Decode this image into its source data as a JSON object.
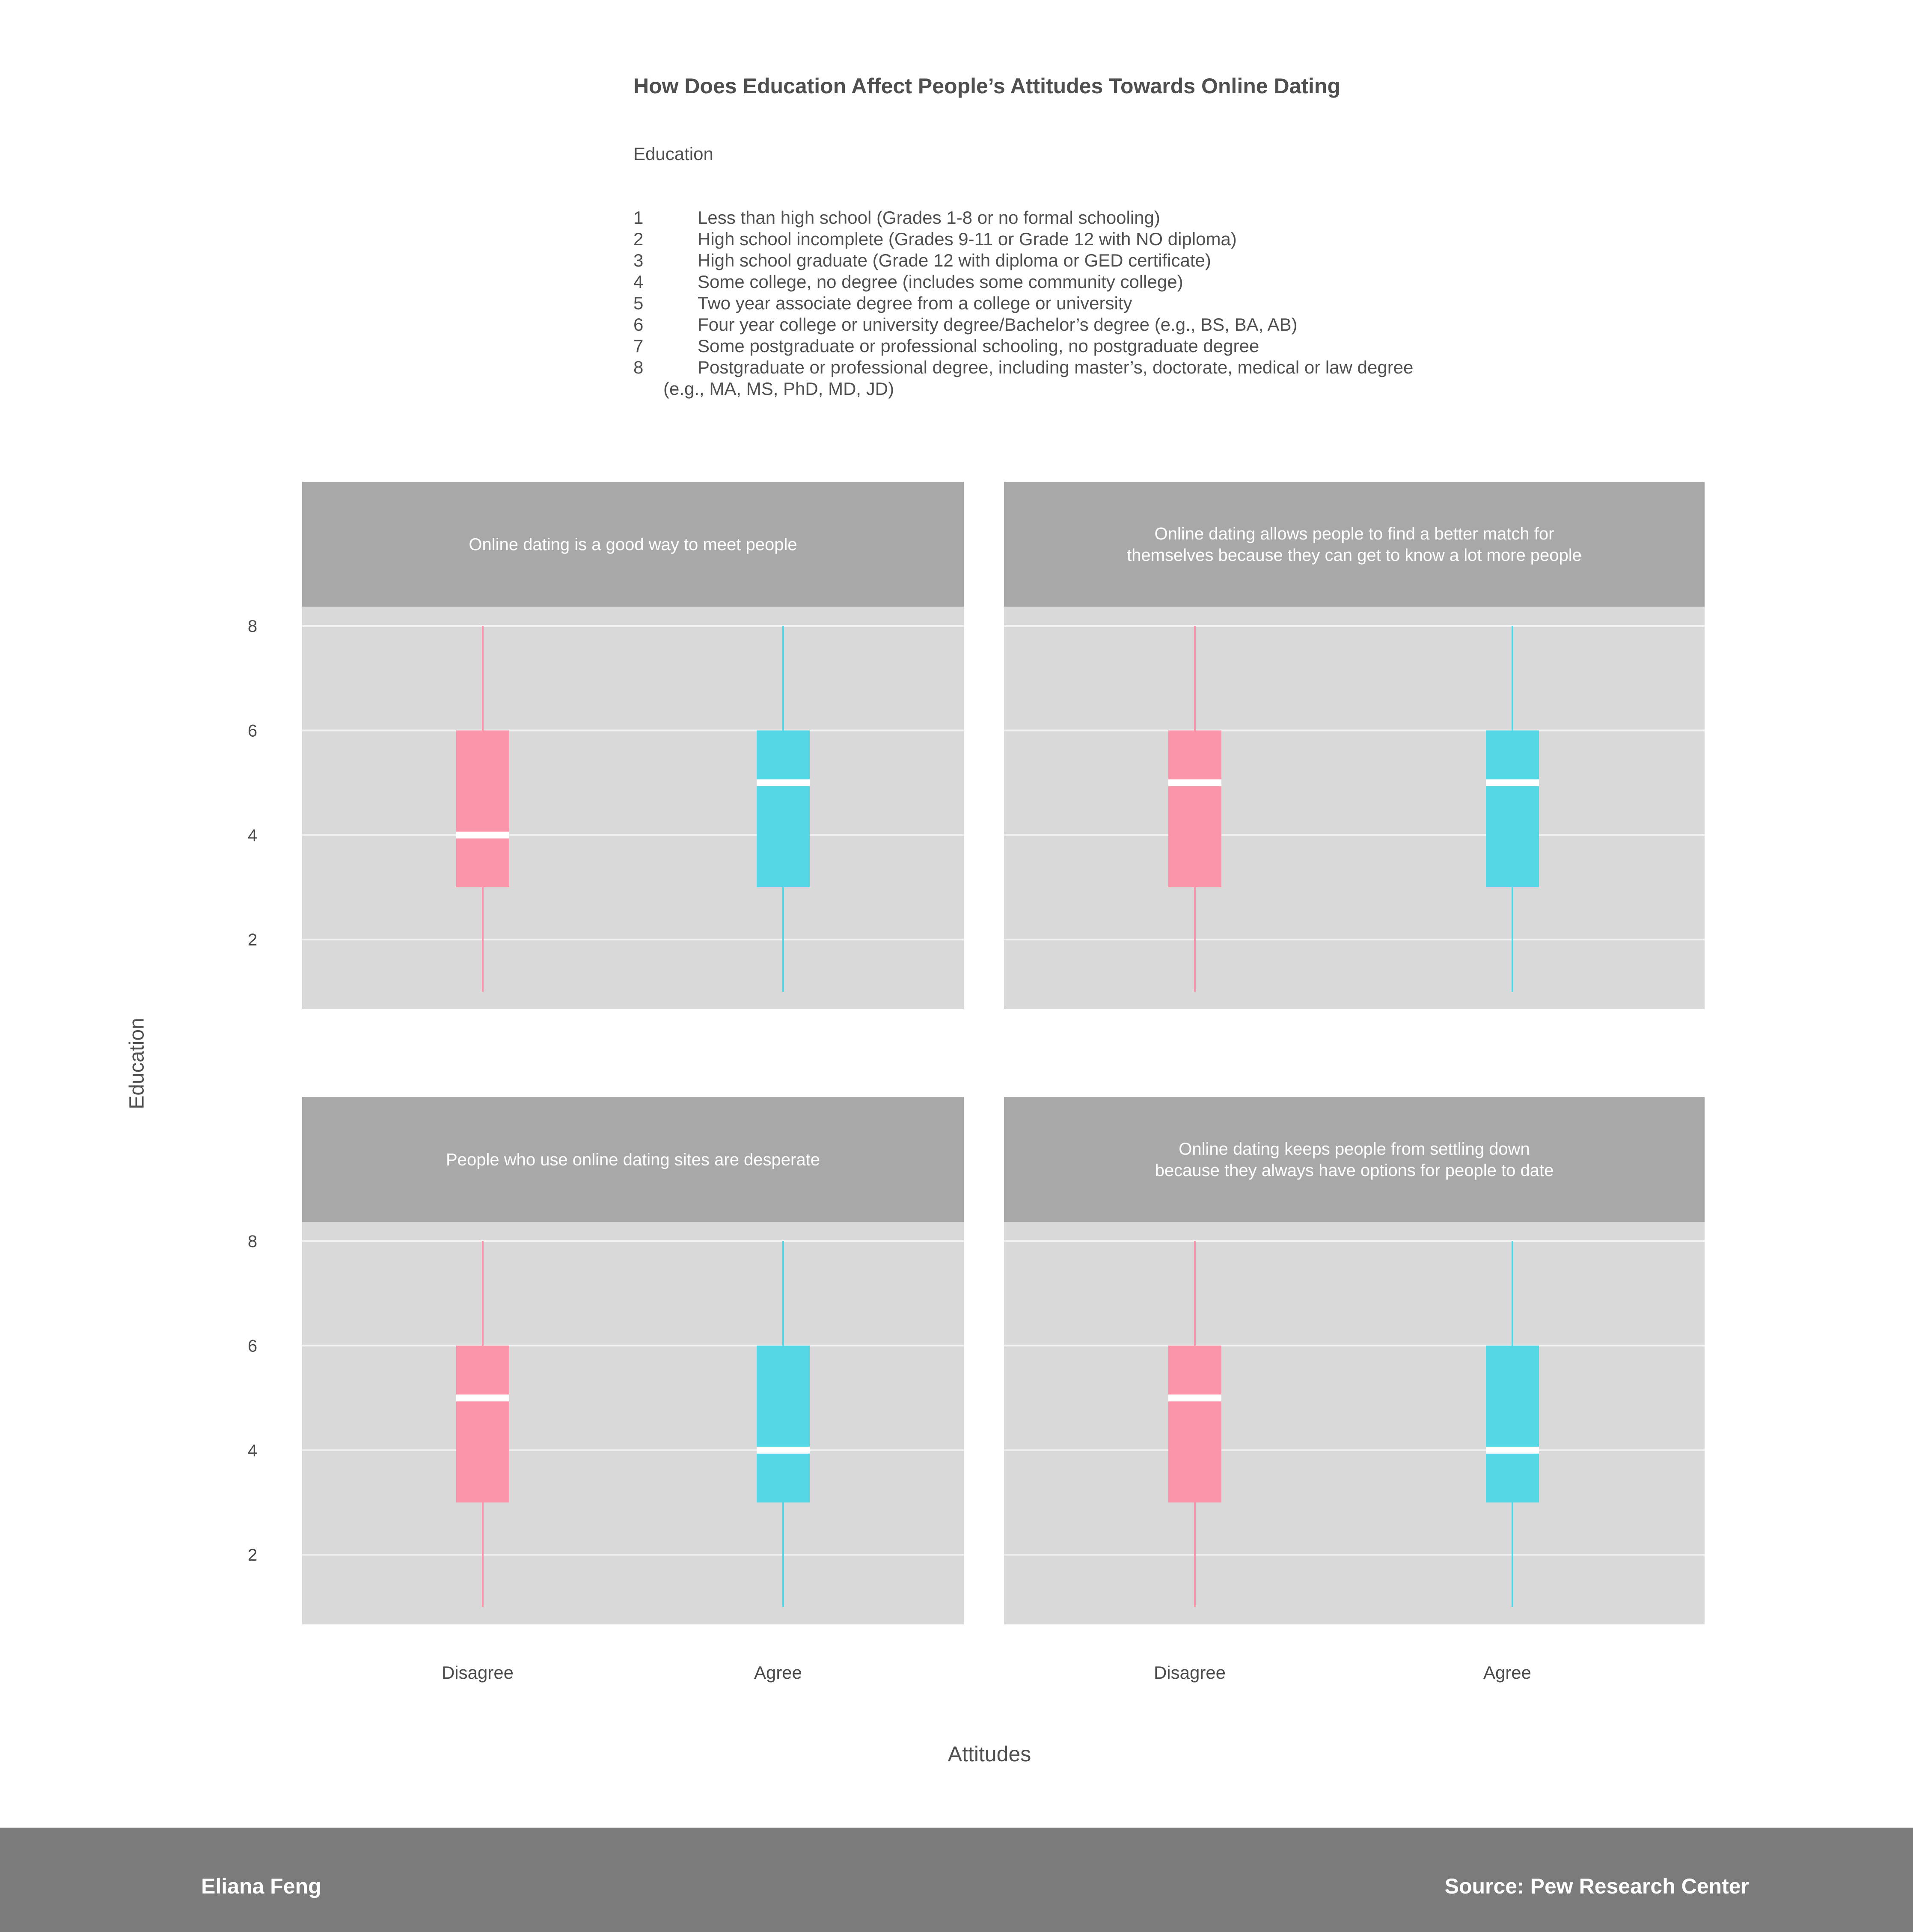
{
  "title": "How Does Education Affect People’s Attitudes Towards Online Dating",
  "legend": {
    "heading": "Education",
    "items": [
      {
        "code": "1",
        "label": "Less than high school (Grades 1-8 or no formal schooling)"
      },
      {
        "code": "2",
        "label": "High school incomplete (Grades 9-11 or Grade 12 with NO diploma)"
      },
      {
        "code": "3",
        "label": "High school graduate (Grade 12 with diploma or GED certificate)"
      },
      {
        "code": "4",
        "label": "Some college, no degree (includes some community college)"
      },
      {
        "code": "5",
        "label": "Two year associate degree from a college or university"
      },
      {
        "code": "6",
        "label": "Four year college or university degree/Bachelor’s degree (e.g., BS, BA, AB)"
      },
      {
        "code": "7",
        "label": "Some postgraduate or professional schooling, no postgraduate degree"
      },
      {
        "code": "8",
        "label": "Postgraduate or professional degree, including master’s, doctorate, medical or law degree"
      }
    ],
    "continuation": "(e.g., MA, MS, PhD, MD, JD)"
  },
  "chart_data": {
    "type": "boxplot",
    "ylabel": "Education",
    "xlabel": "Attitudes",
    "categories": [
      "Disagree",
      "Agree"
    ],
    "yticks": [
      2,
      4,
      6,
      8
    ],
    "ylim": [
      0.65,
      8.35
    ],
    "grid": true,
    "colors": {
      "Disagree": "#fa95aa",
      "Agree": "#55d6e5",
      "median": "#ffffff",
      "panel_bg": "#d9d9d9",
      "strip_bg": "#a8a8a8",
      "grid": "#f2f2f2"
    },
    "panels": [
      {
        "title": "Online dating is a good way to meet people",
        "boxes": [
          {
            "category": "Disagree",
            "min": 1,
            "q1": 3,
            "median": 4,
            "q3": 6,
            "max": 8
          },
          {
            "category": "Agree",
            "min": 1,
            "q1": 3,
            "median": 5,
            "q3": 6,
            "max": 8
          }
        ]
      },
      {
        "title": "Online dating allows people to find a better match for\nthemselves because they can get to know a lot more people",
        "boxes": [
          {
            "category": "Disagree",
            "min": 1,
            "q1": 3,
            "median": 5,
            "q3": 6,
            "max": 8
          },
          {
            "category": "Agree",
            "min": 1,
            "q1": 3,
            "median": 5,
            "q3": 6,
            "max": 8
          }
        ]
      },
      {
        "title": "People who use online dating sites are desperate",
        "boxes": [
          {
            "category": "Disagree",
            "min": 1,
            "q1": 3,
            "median": 5,
            "q3": 6,
            "max": 8
          },
          {
            "category": "Agree",
            "min": 1,
            "q1": 3,
            "median": 4,
            "q3": 6,
            "max": 8
          }
        ]
      },
      {
        "title": "Online dating keeps people from settling down\nbecause they always have options for people to date",
        "boxes": [
          {
            "category": "Disagree",
            "min": 1,
            "q1": 3,
            "median": 5,
            "q3": 6,
            "max": 8
          },
          {
            "category": "Agree",
            "min": 1,
            "q1": 3,
            "median": 4,
            "q3": 6,
            "max": 8
          }
        ]
      }
    ]
  },
  "footer": {
    "author": "Eliana Feng",
    "source": "Source: Pew Research Center"
  }
}
